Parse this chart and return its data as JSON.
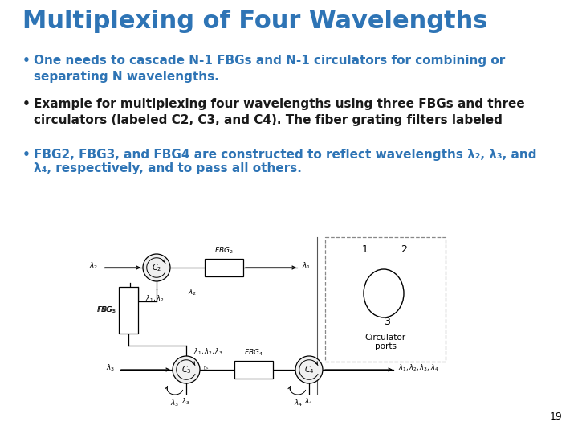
{
  "title": "Multiplexing of Four Wavelengths",
  "title_color": "#2E74B5",
  "title_fontsize": 22,
  "background_color": "#FFFFFF",
  "bullet_color_blue": "#2E74B5",
  "bullet_color_black": "#1A1A1A",
  "page_number": "19",
  "bullet1": "One needs to cascade N-1 FBGs and N-1 circulators for combining or\nseparating N wavelengths.",
  "bullet2": "Example for multiplexing four wavelengths using three FBGs and three\ncirculators (labeled C2, C3, and C4). The fiber grating filters labeled",
  "bullet3_part1": "FBG2, FBG3, and FBG4 are constructed to reflect wavelengths λ",
  "bullet3_part2": ", λ",
  "bullet3_part3": ", and",
  "bullet3_part4": "λ",
  "bullet3_part5": ", respectively, and to pass all others.",
  "sub2": "2",
  "sub3": "3",
  "sub4": "4"
}
